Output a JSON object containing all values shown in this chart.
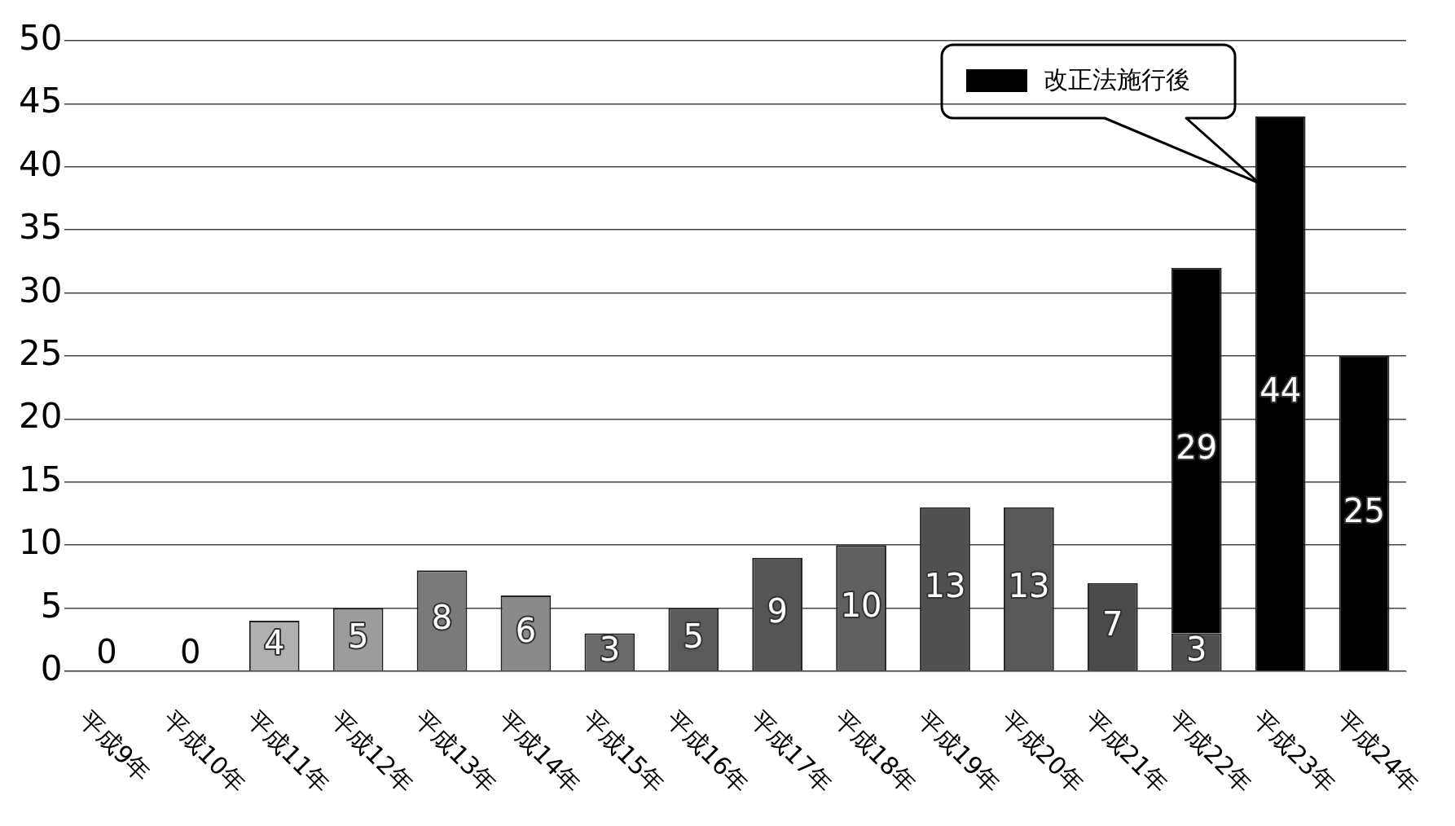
{
  "chart_data": {
    "type": "bar",
    "stacked": true,
    "categories": [
      "平成9年",
      "平成10年",
      "平成11年",
      "平成12年",
      "平成13年",
      "平成14年",
      "平成15年",
      "平成16年",
      "平成17年",
      "平成18年",
      "平成19年",
      "平成20年",
      "平成21年",
      "平成22年",
      "平成23年",
      "平成24年"
    ],
    "series": [
      {
        "colors": [
          "#9a9a9a",
          "#9a9a9a",
          "#b0b0b0",
          "#9c9c9c",
          "#7a7a7a",
          "#8a8a8a",
          "#6a6a6a",
          "#5a5a5a",
          "#555555",
          "#606060",
          "#505050",
          "#585858",
          "#4a4a4a",
          "#505050",
          "#505050",
          "#505050"
        ],
        "values": [
          0,
          0,
          4,
          5,
          8,
          6,
          3,
          5,
          9,
          10,
          13,
          13,
          7,
          3,
          null,
          null
        ]
      },
      {
        "name": "改正法施行後",
        "color": "#000000",
        "values": [
          null,
          null,
          null,
          null,
          null,
          null,
          null,
          null,
          null,
          null,
          null,
          null,
          null,
          29,
          44,
          25
        ]
      }
    ],
    "ylim": [
      0,
      50
    ],
    "yticks": [
      0,
      5,
      10,
      15,
      20,
      25,
      30,
      35,
      40,
      45,
      50
    ],
    "grid": "y",
    "legend": "top right",
    "data_labels": true
  }
}
